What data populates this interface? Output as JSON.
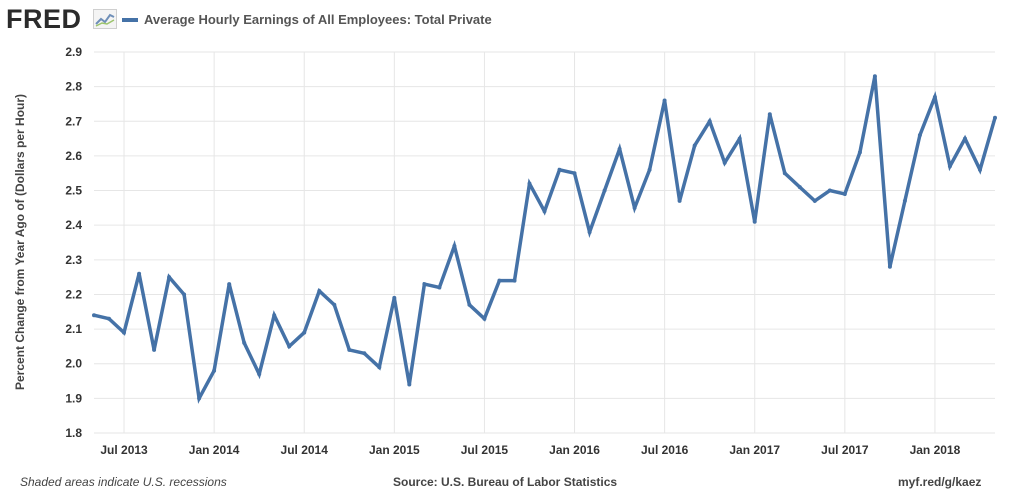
{
  "header": {
    "logo_text": "FRED",
    "logo_icon": "line-chart-icon",
    "series_title": "Average Hourly Earnings of All Employees: Total Private"
  },
  "colors": {
    "series_line": "#4572a7",
    "grid": "#e6e6e6",
    "plot_background": "#ffffff"
  },
  "chart_data": {
    "type": "line",
    "title": "Average Hourly Earnings of All Employees: Total Private",
    "ylabel": "Percent Change from Year Ago of (Dollars per Hour)",
    "xlabel": "",
    "ylim": [
      1.8,
      2.9
    ],
    "yticks": [
      "2.9",
      "2.8",
      "2.7",
      "2.6",
      "2.5",
      "2.4",
      "2.3",
      "2.2",
      "2.1",
      "2.0",
      "1.9",
      "1.8"
    ],
    "xticks": [
      {
        "label": "Jul 2013",
        "date": "2013-07"
      },
      {
        "label": "Jan 2014",
        "date": "2014-01"
      },
      {
        "label": "Jul 2014",
        "date": "2014-07"
      },
      {
        "label": "Jan 2015",
        "date": "2015-01"
      },
      {
        "label": "Jul 2015",
        "date": "2015-07"
      },
      {
        "label": "Jan 2016",
        "date": "2016-01"
      },
      {
        "label": "Jul 2016",
        "date": "2016-07"
      },
      {
        "label": "Jan 2017",
        "date": "2017-01"
      },
      {
        "label": "Jul 2017",
        "date": "2017-07"
      },
      {
        "label": "Jan 2018",
        "date": "2018-01"
      }
    ],
    "grid": true,
    "series": [
      {
        "name": "Average Hourly Earnings of All Employees: Total Private",
        "points": [
          {
            "x": "2013-05",
            "y": 2.14
          },
          {
            "x": "2013-06",
            "y": 2.13
          },
          {
            "x": "2013-07",
            "y": 2.09
          },
          {
            "x": "2013-08",
            "y": 2.26
          },
          {
            "x": "2013-09",
            "y": 2.04
          },
          {
            "x": "2013-10",
            "y": 2.25
          },
          {
            "x": "2013-11",
            "y": 2.2
          },
          {
            "x": "2013-12",
            "y": 1.9
          },
          {
            "x": "2014-01",
            "y": 1.98
          },
          {
            "x": "2014-02",
            "y": 2.23
          },
          {
            "x": "2014-03",
            "y": 2.06
          },
          {
            "x": "2014-04",
            "y": 1.97
          },
          {
            "x": "2014-05",
            "y": 2.14
          },
          {
            "x": "2014-06",
            "y": 2.05
          },
          {
            "x": "2014-07",
            "y": 2.09
          },
          {
            "x": "2014-08",
            "y": 2.21
          },
          {
            "x": "2014-09",
            "y": 2.17
          },
          {
            "x": "2014-10",
            "y": 2.04
          },
          {
            "x": "2014-11",
            "y": 2.03
          },
          {
            "x": "2014-12",
            "y": 1.99
          },
          {
            "x": "2015-01",
            "y": 2.19
          },
          {
            "x": "2015-02",
            "y": 1.94
          },
          {
            "x": "2015-03",
            "y": 2.23
          },
          {
            "x": "2015-04",
            "y": 2.22
          },
          {
            "x": "2015-05",
            "y": 2.34
          },
          {
            "x": "2015-06",
            "y": 2.17
          },
          {
            "x": "2015-07",
            "y": 2.13
          },
          {
            "x": "2015-08",
            "y": 2.24
          },
          {
            "x": "2015-09",
            "y": 2.24
          },
          {
            "x": "2015-10",
            "y": 2.52
          },
          {
            "x": "2015-11",
            "y": 2.44
          },
          {
            "x": "2015-12",
            "y": 2.56
          },
          {
            "x": "2016-01",
            "y": 2.55
          },
          {
            "x": "2016-02",
            "y": 2.38
          },
          {
            "x": "2016-03",
            "y": 2.5
          },
          {
            "x": "2016-04",
            "y": 2.62
          },
          {
            "x": "2016-05",
            "y": 2.45
          },
          {
            "x": "2016-06",
            "y": 2.56
          },
          {
            "x": "2016-07",
            "y": 2.76
          },
          {
            "x": "2016-08",
            "y": 2.47
          },
          {
            "x": "2016-09",
            "y": 2.63
          },
          {
            "x": "2016-10",
            "y": 2.7
          },
          {
            "x": "2016-11",
            "y": 2.58
          },
          {
            "x": "2016-12",
            "y": 2.65
          },
          {
            "x": "2017-01",
            "y": 2.41
          },
          {
            "x": "2017-02",
            "y": 2.72
          },
          {
            "x": "2017-03",
            "y": 2.55
          },
          {
            "x": "2017-04",
            "y": 2.51
          },
          {
            "x": "2017-05",
            "y": 2.47
          },
          {
            "x": "2017-06",
            "y": 2.5
          },
          {
            "x": "2017-07",
            "y": 2.49
          },
          {
            "x": "2017-08",
            "y": 2.61
          },
          {
            "x": "2017-09",
            "y": 2.83
          },
          {
            "x": "2017-10",
            "y": 2.28
          },
          {
            "x": "2017-11",
            "y": 2.47
          },
          {
            "x": "2017-12",
            "y": 2.66
          },
          {
            "x": "2018-01",
            "y": 2.77
          },
          {
            "x": "2018-02",
            "y": 2.57
          },
          {
            "x": "2018-03",
            "y": 2.65
          },
          {
            "x": "2018-04",
            "y": 2.56
          },
          {
            "x": "2018-05",
            "y": 2.71
          }
        ]
      }
    ]
  },
  "footer": {
    "recession_note": "Shaded areas indicate U.S. recessions",
    "source": "Source: U.S. Bureau of Labor Statistics",
    "short_url": "myf.red/g/kaez"
  }
}
